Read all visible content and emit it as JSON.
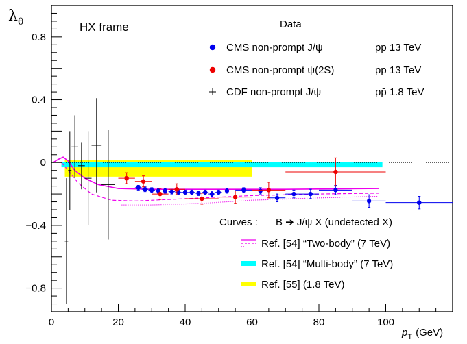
{
  "chart_data": {
    "type": "scatter",
    "title": "",
    "frame_label": "HX frame",
    "ylabel": "λ",
    "ylabel_sub": "θ",
    "xlabel": "p",
    "xlabel_sub": "T",
    "xlabel_unit": "(GeV)",
    "xlim": [
      0,
      120
    ],
    "ylim": [
      -0.95,
      1.0
    ],
    "x_ticks": [
      0,
      20,
      40,
      60,
      80,
      100
    ],
    "y_ticks": [
      -0.8,
      -0.4,
      0,
      0.4,
      0.8
    ],
    "y_tick_labels": [
      "−0.8",
      "−0.4",
      "0",
      "0.4",
      "0.8"
    ],
    "reference_line_y": 0,
    "legend_data_title": "Data",
    "legend_curves_title": "Curves :",
    "legend_curves_process": "B ➔ J/ψ X  (undetected X)",
    "series": [
      {
        "name": "CMS non-prompt J/ψ",
        "energy": "pp 13 TeV",
        "color": "#0000ee",
        "marker": "circle",
        "points": [
          {
            "x": 26,
            "y": -0.16,
            "xerr": 1,
            "yerr": 0.015
          },
          {
            "x": 28,
            "y": -0.17,
            "xerr": 1,
            "yerr": 0.015
          },
          {
            "x": 30,
            "y": -0.175,
            "xerr": 1,
            "yerr": 0.015
          },
          {
            "x": 32,
            "y": -0.18,
            "xerr": 1,
            "yerr": 0.015
          },
          {
            "x": 34,
            "y": -0.18,
            "xerr": 1,
            "yerr": 0.015
          },
          {
            "x": 36,
            "y": -0.185,
            "xerr": 1,
            "yerr": 0.015
          },
          {
            "x": 38,
            "y": -0.19,
            "xerr": 1,
            "yerr": 0.015
          },
          {
            "x": 40,
            "y": -0.19,
            "xerr": 1,
            "yerr": 0.015
          },
          {
            "x": 42,
            "y": -0.19,
            "xerr": 1,
            "yerr": 0.015
          },
          {
            "x": 44,
            "y": -0.195,
            "xerr": 1,
            "yerr": 0.015
          },
          {
            "x": 46,
            "y": -0.19,
            "xerr": 1,
            "yerr": 0.015
          },
          {
            "x": 48,
            "y": -0.2,
            "xerr": 1,
            "yerr": 0.015
          },
          {
            "x": 50,
            "y": -0.19,
            "xerr": 1,
            "yerr": 0.015
          },
          {
            "x": 52.5,
            "y": -0.18,
            "xerr": 1.5,
            "yerr": 0.015
          },
          {
            "x": 57.5,
            "y": -0.175,
            "xerr": 2.5,
            "yerr": 0.015
          },
          {
            "x": 62.5,
            "y": -0.18,
            "xerr": 2.5,
            "yerr": 0.02
          },
          {
            "x": 67.5,
            "y": -0.225,
            "xerr": 2.5,
            "yerr": 0.025
          },
          {
            "x": 72.5,
            "y": -0.2,
            "xerr": 2.5,
            "yerr": 0.025
          },
          {
            "x": 77.5,
            "y": -0.2,
            "xerr": 2.5,
            "yerr": 0.03
          },
          {
            "x": 85,
            "y": -0.175,
            "xerr": 5,
            "yerr": 0.03
          },
          {
            "x": 95,
            "y": -0.245,
            "xerr": 5,
            "yerr": 0.04
          },
          {
            "x": 110,
            "y": -0.255,
            "xerr": 10,
            "yerr": 0.04
          }
        ]
      },
      {
        "name": "CMS non-prompt ψ(2S)",
        "energy": "pp 13 TeV",
        "color": "#ee0000",
        "marker": "circle",
        "points": [
          {
            "x": 22.5,
            "y": -0.1,
            "xerr": 2.5,
            "yerr": 0.035
          },
          {
            "x": 27.5,
            "y": -0.12,
            "xerr": 2.5,
            "yerr": 0.035
          },
          {
            "x": 32.5,
            "y": -0.2,
            "xerr": 2.5,
            "yerr": 0.035
          },
          {
            "x": 37.5,
            "y": -0.17,
            "xerr": 2.5,
            "yerr": 0.035
          },
          {
            "x": 45,
            "y": -0.23,
            "xerr": 5,
            "yerr": 0.035
          },
          {
            "x": 55,
            "y": -0.22,
            "xerr": 5,
            "yerr": 0.04
          },
          {
            "x": 65,
            "y": -0.175,
            "xerr": 5,
            "yerr": 0.05
          },
          {
            "x": 85,
            "y": -0.06,
            "xerr": 15,
            "yerr": 0.09
          }
        ]
      },
      {
        "name": "CDF non-prompt J/ψ",
        "energy": "pp̄ 1.8 TeV",
        "color": "#000000",
        "marker": "cross",
        "points": [
          {
            "x": 4.5,
            "y": -0.5,
            "xerr": 0.5,
            "yerr": 0.4
          },
          {
            "x": 5.5,
            "y": -0.05,
            "xerr": 0.5,
            "yerr": 0.25
          },
          {
            "x": 7,
            "y": 0.1,
            "xerr": 1,
            "yerr": 0.2
          },
          {
            "x": 9,
            "y": -0.02,
            "xerr": 1,
            "yerr": 0.15
          },
          {
            "x": 11,
            "y": -0.1,
            "xerr": 1,
            "yerr": 0.3
          },
          {
            "x": 13.5,
            "y": 0.11,
            "xerr": 1.5,
            "yerr": 0.3
          },
          {
            "x": 17,
            "y": -0.14,
            "xerr": 2,
            "yerr": 0.35
          }
        ]
      }
    ],
    "bands": [
      {
        "name": "Ref. [54] “Multi-body” (7 TeV)",
        "color": "#00ffff",
        "x_start": 3,
        "x_end": 99,
        "y_low": -0.03,
        "y_high": 0.005
      },
      {
        "name": "Ref. [55]  (1.8 TeV)",
        "color": "#ffff00",
        "x_start": 4,
        "x_end": 60,
        "y_low": -0.09,
        "y_high": 0.015
      }
    ],
    "curves": [
      {
        "name": "Ref. [54] “Two-body” (7 TeV)",
        "color": "#ee00ee",
        "styles": [
          "solid",
          "dashed",
          "dotted"
        ],
        "solid": [
          [
            0.5,
            0
          ],
          [
            2,
            0.02
          ],
          [
            3.5,
            0.035
          ],
          [
            5,
            0.01
          ],
          [
            7,
            -0.05
          ],
          [
            10,
            -0.1
          ],
          [
            14,
            -0.14
          ],
          [
            20,
            -0.165
          ],
          [
            30,
            -0.17
          ],
          [
            50,
            -0.17
          ],
          [
            70,
            -0.17
          ],
          [
            98,
            -0.165
          ]
        ],
        "dashed": [
          [
            3,
            0
          ],
          [
            5,
            -0.05
          ],
          [
            8,
            -0.13
          ],
          [
            12,
            -0.2
          ],
          [
            18,
            -0.24
          ],
          [
            25,
            -0.245
          ],
          [
            40,
            -0.23
          ],
          [
            60,
            -0.21
          ],
          [
            80,
            -0.2
          ],
          [
            98,
            -0.195
          ]
        ],
        "dotted": [
          [
            21,
            -0.27
          ],
          [
            30,
            -0.27
          ],
          [
            45,
            -0.26
          ],
          [
            60,
            -0.24
          ],
          [
            80,
            -0.225
          ],
          [
            98,
            -0.215
          ]
        ]
      }
    ]
  }
}
